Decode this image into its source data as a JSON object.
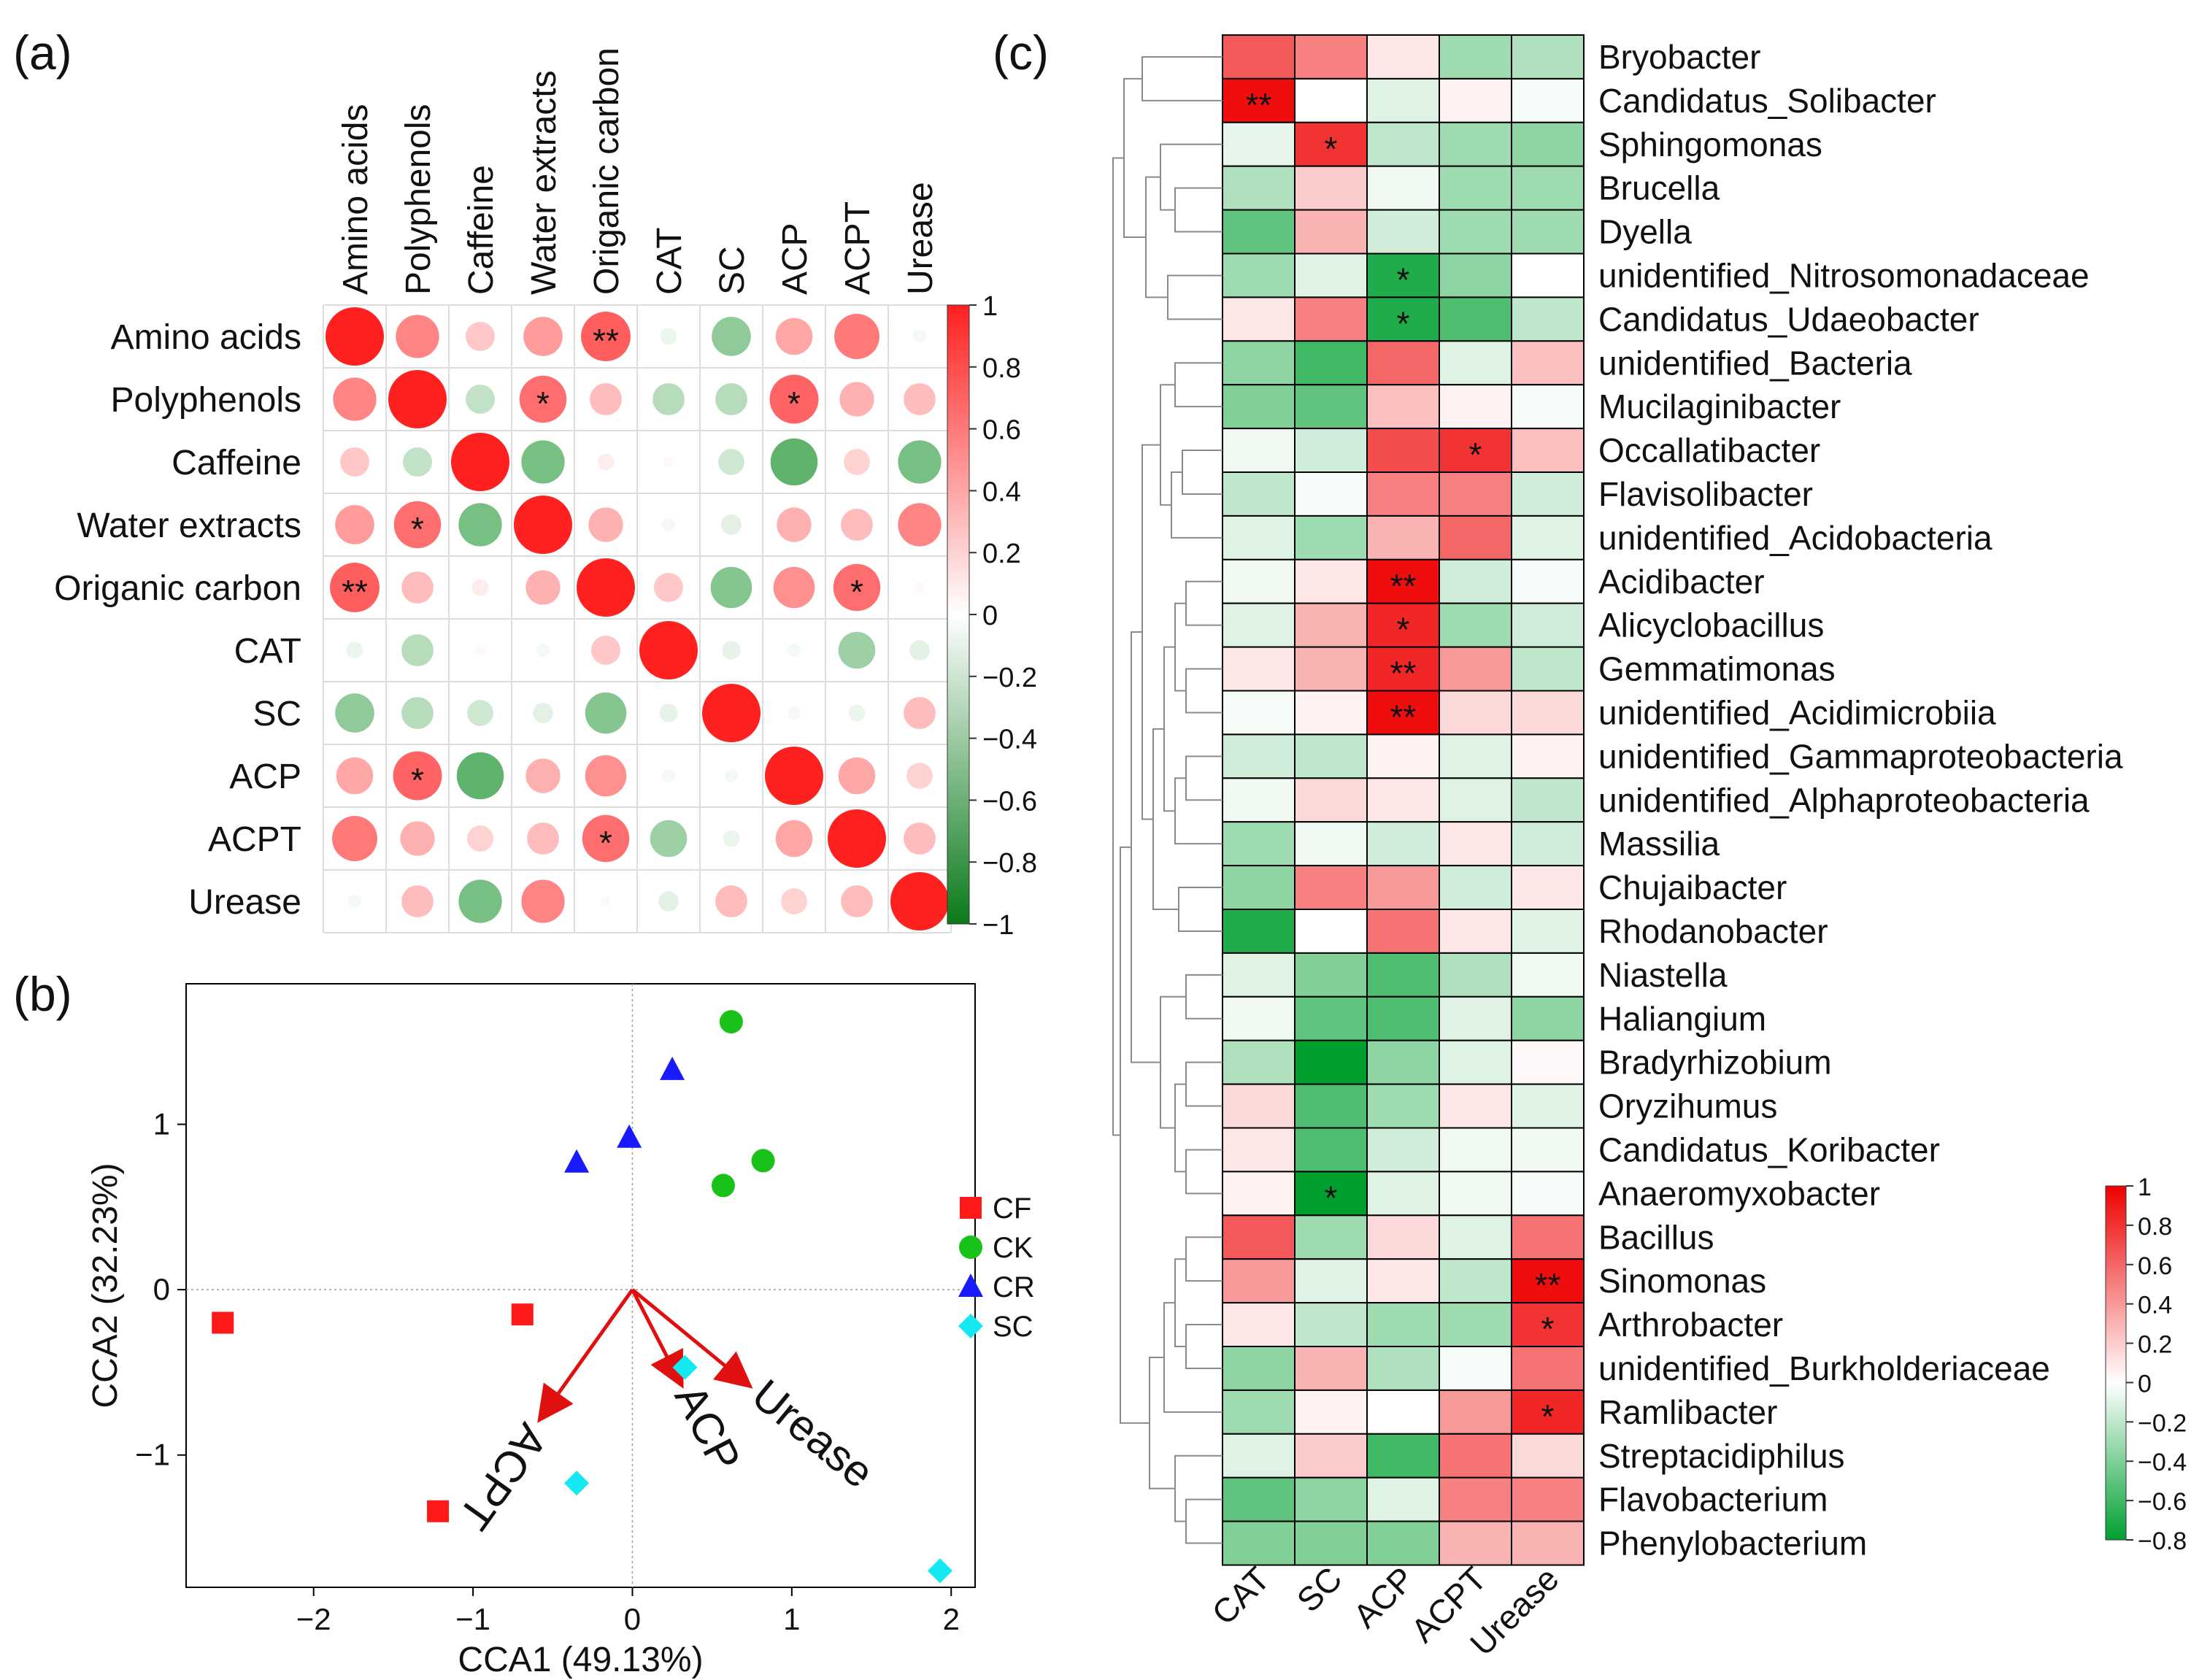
{
  "panel_labels": {
    "a": "(a)",
    "b": "(b)",
    "c": "(c)"
  },
  "chart_data": [
    {
      "id": "a",
      "type": "heatmap",
      "title": "",
      "variables": [
        "Amino acids",
        "Polyphenols",
        "Caffeine",
        "Water extracts",
        "Origanic carbon",
        "CAT",
        "SC",
        "ACP",
        "ACPT",
        "Urease"
      ],
      "values": [
        [
          1.0,
          0.55,
          0.25,
          0.45,
          0.72,
          -0.08,
          -0.45,
          0.4,
          0.6,
          -0.05
        ],
        [
          0.55,
          1.0,
          -0.25,
          0.65,
          0.3,
          -0.3,
          -0.3,
          0.7,
          0.35,
          0.3
        ],
        [
          0.25,
          -0.25,
          1.0,
          -0.55,
          0.08,
          0.03,
          -0.2,
          -0.65,
          0.2,
          -0.55
        ],
        [
          0.45,
          0.65,
          -0.55,
          1.0,
          0.35,
          -0.05,
          -0.12,
          0.35,
          0.3,
          0.55
        ],
        [
          0.72,
          0.3,
          0.08,
          0.35,
          1.0,
          0.25,
          -0.5,
          0.5,
          0.65,
          0.03
        ],
        [
          -0.08,
          -0.3,
          0.03,
          -0.05,
          0.25,
          1.0,
          -0.1,
          -0.05,
          -0.4,
          -0.12
        ],
        [
          -0.45,
          -0.3,
          -0.2,
          -0.12,
          -0.5,
          -0.1,
          1.0,
          -0.05,
          -0.08,
          0.3
        ],
        [
          0.4,
          0.7,
          -0.65,
          0.35,
          0.5,
          -0.05,
          -0.05,
          1.0,
          0.4,
          0.2
        ],
        [
          0.6,
          0.35,
          0.2,
          0.3,
          0.65,
          -0.4,
          -0.08,
          0.4,
          1.0,
          0.3
        ],
        [
          -0.05,
          0.3,
          -0.55,
          0.55,
          0.03,
          -0.12,
          0.3,
          0.2,
          0.3,
          1.0
        ]
      ],
      "significance": [
        [
          "",
          "",
          "",
          "",
          "**",
          "",
          "",
          "",
          "",
          ""
        ],
        [
          "",
          "",
          "",
          "*",
          "",
          "",
          "",
          "*",
          "",
          ""
        ],
        [
          "",
          "",
          "",
          "",
          "",
          "",
          "",
          "",
          "",
          ""
        ],
        [
          "",
          "*",
          "",
          "",
          "",
          "",
          "",
          "",
          "",
          ""
        ],
        [
          "**",
          "",
          "",
          "",
          "",
          "",
          "",
          "",
          "*",
          ""
        ],
        [
          "",
          "",
          "",
          "",
          "",
          "",
          "",
          "",
          "",
          ""
        ],
        [
          "",
          "",
          "",
          "",
          "",
          "",
          "",
          "",
          "",
          ""
        ],
        [
          "",
          "*",
          "",
          "",
          "",
          "",
          "",
          "",
          "",
          ""
        ],
        [
          "",
          "",
          "",
          "",
          "*",
          "",
          "",
          "",
          "",
          ""
        ],
        [
          "",
          "",
          "",
          "",
          "",
          "",
          "",
          "",
          "",
          ""
        ]
      ],
      "colorbar": {
        "min": -1,
        "max": 1,
        "ticks": [
          1,
          0.8,
          0.6,
          0.4,
          0.2,
          0,
          -0.2,
          -0.4,
          -0.6,
          -0.8,
          -1
        ],
        "tick_labels": [
          "1",
          "0.8",
          "0.6",
          "0.4",
          "0.2",
          "0",
          "−0.2",
          "−0.4",
          "−0.6",
          "−0.8",
          "−1"
        ]
      },
      "colors": {
        "positive": "#ff2020",
        "negative": "#0a8a1e",
        "neutral": "#ffffff"
      }
    },
    {
      "id": "b",
      "type": "scatter",
      "xlabel": "CCA1  (49.13%)",
      "ylabel": "CCA2  (32.23%)",
      "xlim": [
        -2.8,
        2.15
      ],
      "ylim": [
        -1.8,
        1.85
      ],
      "xticks": [
        -2,
        -1,
        0,
        1,
        2
      ],
      "xtick_labels": [
        "−2",
        "−1",
        "0",
        "1",
        "2"
      ],
      "yticks": [
        -1,
        0,
        1
      ],
      "ytick_labels": [
        "−1",
        "0",
        "1"
      ],
      "series": [
        {
          "name": "CF",
          "marker": "square",
          "color": "#ff1a1a",
          "points": [
            [
              -2.57,
              -0.2
            ],
            [
              -0.69,
              -0.15
            ],
            [
              -1.22,
              -1.34
            ]
          ]
        },
        {
          "name": "CK",
          "marker": "circle",
          "color": "#19c219",
          "points": [
            [
              0.62,
              1.62
            ],
            [
              0.82,
              0.78
            ],
            [
              0.57,
              0.63
            ]
          ]
        },
        {
          "name": "CR",
          "marker": "triangle",
          "color": "#1a1aff",
          "points": [
            [
              0.25,
              1.33
            ],
            [
              -0.02,
              0.92
            ],
            [
              -0.35,
              0.77
            ]
          ]
        },
        {
          "name": "SC",
          "marker": "diamond",
          "color": "#14e8f0",
          "points": [
            [
              0.33,
              -0.47
            ],
            [
              -0.35,
              -1.17
            ],
            [
              1.93,
              -1.7
            ]
          ]
        }
      ],
      "arrows": [
        {
          "label": "ACPT",
          "x": -0.57,
          "y": -0.77
        },
        {
          "label": "ACP",
          "x": 0.3,
          "y": -0.56
        },
        {
          "label": "Urease",
          "x": 0.72,
          "y": -0.57
        }
      ],
      "arrow_color": "#e01010",
      "legend_position": "right"
    },
    {
      "id": "c",
      "type": "heatmap",
      "columns": [
        "CAT",
        "SC",
        "ACP",
        "ACPT",
        "Urease"
      ],
      "rows": [
        "Bryobacter",
        "Candidatus_Solibacter",
        "Sphingomonas",
        "Brucella",
        "Dyella",
        "unidentified_Nitrosomonadaceae",
        "Candidatus_Udaeobacter",
        "unidentified_Bacteria",
        "Mucilaginibacter",
        "Occallatibacter",
        "Flavisolibacter",
        "unidentified_Acidobacteria",
        "Acidibacter",
        "Alicyclobacillus",
        "Gemmatimonas",
        "unidentified_Acidimicrobiia",
        "unidentified_Gammaproteobacteria",
        "unidentified_Alphaproteobacteria",
        "Massilia",
        "Chujaibacter",
        "Rhodanobacter",
        "Niastella",
        "Haliangium",
        "Bradyrhizobium",
        "Oryzihumus",
        "Candidatus_Koribacter",
        "Anaeromyxobacter",
        "Bacillus",
        "Sinomonas",
        "Arthrobacter",
        "unidentified_Burkholderiaceae",
        "Ramlibacter",
        "Streptacidiphilus",
        "Flavobacterium",
        "Phenylobacterium"
      ],
      "values": [
        [
          0.65,
          0.5,
          0.1,
          -0.3,
          -0.25
        ],
        [
          0.95,
          0.0,
          -0.1,
          0.05,
          -0.03
        ],
        [
          -0.08,
          0.8,
          -0.2,
          -0.3,
          -0.35
        ],
        [
          -0.25,
          0.2,
          -0.05,
          -0.3,
          -0.3
        ],
        [
          -0.5,
          0.3,
          -0.15,
          -0.3,
          -0.3
        ],
        [
          -0.3,
          -0.1,
          -0.7,
          -0.35,
          0.0
        ],
        [
          0.1,
          0.5,
          -0.7,
          -0.55,
          -0.2
        ],
        [
          -0.35,
          -0.6,
          0.6,
          -0.1,
          0.25
        ],
        [
          -0.4,
          -0.5,
          0.25,
          0.05,
          -0.03
        ],
        [
          -0.05,
          -0.15,
          0.7,
          0.8,
          0.25
        ],
        [
          -0.2,
          -0.03,
          0.5,
          0.5,
          -0.15
        ],
        [
          -0.1,
          -0.3,
          0.3,
          0.6,
          -0.1
        ],
        [
          -0.05,
          0.1,
          0.95,
          -0.15,
          -0.03
        ],
        [
          -0.1,
          0.3,
          0.85,
          -0.3,
          -0.15
        ],
        [
          0.1,
          0.3,
          0.85,
          0.4,
          -0.2
        ],
        [
          -0.03,
          0.05,
          0.95,
          0.15,
          0.15
        ],
        [
          -0.15,
          -0.2,
          0.05,
          -0.1,
          0.05
        ],
        [
          -0.05,
          0.15,
          0.1,
          -0.1,
          -0.2
        ],
        [
          -0.3,
          -0.05,
          -0.15,
          0.1,
          -0.15
        ],
        [
          -0.35,
          0.5,
          0.4,
          -0.15,
          0.1
        ],
        [
          -0.7,
          0.0,
          0.55,
          0.1,
          -0.1
        ],
        [
          -0.1,
          -0.4,
          -0.55,
          -0.25,
          -0.05
        ],
        [
          -0.05,
          -0.5,
          -0.55,
          -0.1,
          -0.35
        ],
        [
          -0.25,
          -0.8,
          -0.35,
          -0.1,
          0.03
        ],
        [
          0.15,
          -0.55,
          -0.3,
          0.1,
          -0.1
        ],
        [
          0.1,
          -0.55,
          -0.15,
          -0.05,
          -0.05
        ],
        [
          0.05,
          -0.85,
          -0.1,
          -0.05,
          -0.03
        ],
        [
          0.65,
          -0.3,
          0.15,
          -0.1,
          0.55
        ],
        [
          0.4,
          -0.1,
          0.1,
          -0.2,
          0.95
        ],
        [
          0.1,
          -0.2,
          -0.3,
          -0.3,
          0.8
        ],
        [
          -0.35,
          0.3,
          -0.25,
          -0.03,
          0.55
        ],
        [
          -0.3,
          0.05,
          0.0,
          0.4,
          0.85
        ],
        [
          -0.1,
          0.2,
          -0.6,
          0.55,
          0.15
        ],
        [
          -0.5,
          -0.35,
          -0.1,
          0.5,
          0.5
        ],
        [
          -0.4,
          -0.4,
          -0.4,
          0.3,
          0.3
        ]
      ],
      "significance": [
        [
          "",
          "",
          "",
          "",
          ""
        ],
        [
          "**",
          "",
          "",
          "",
          ""
        ],
        [
          "",
          "*",
          "",
          "",
          ""
        ],
        [
          "",
          "",
          "",
          "",
          ""
        ],
        [
          "",
          "",
          "",
          "",
          ""
        ],
        [
          "",
          "",
          "*",
          "",
          ""
        ],
        [
          "",
          "",
          "*",
          "",
          ""
        ],
        [
          "",
          "",
          "",
          "",
          ""
        ],
        [
          "",
          "",
          "",
          "",
          ""
        ],
        [
          "",
          "",
          "",
          "*",
          ""
        ],
        [
          "",
          "",
          "",
          "",
          ""
        ],
        [
          "",
          "",
          "",
          "",
          ""
        ],
        [
          "",
          "",
          "**",
          "",
          ""
        ],
        [
          "",
          "",
          "*",
          "",
          ""
        ],
        [
          "",
          "",
          "**",
          "",
          ""
        ],
        [
          "",
          "",
          "**",
          "",
          ""
        ],
        [
          "",
          "",
          "",
          "",
          ""
        ],
        [
          "",
          "",
          "",
          "",
          ""
        ],
        [
          "",
          "",
          "",
          "",
          ""
        ],
        [
          "",
          "",
          "",
          "",
          ""
        ],
        [
          "",
          "",
          "",
          "",
          ""
        ],
        [
          "",
          "",
          "",
          "",
          ""
        ],
        [
          "",
          "",
          "",
          "",
          ""
        ],
        [
          "",
          "",
          "",
          "",
          ""
        ],
        [
          "",
          "",
          "",
          "",
          ""
        ],
        [
          "",
          "",
          "",
          "",
          ""
        ],
        [
          "",
          "*",
          "",
          "",
          ""
        ],
        [
          "",
          "",
          "",
          "",
          ""
        ],
        [
          "",
          "",
          "",
          "",
          "**"
        ],
        [
          "",
          "",
          "",
          "",
          "*"
        ],
        [
          "",
          "",
          "",
          "",
          ""
        ],
        [
          "",
          "",
          "",
          "",
          "*"
        ],
        [
          "",
          "",
          "",
          "",
          ""
        ],
        [
          "",
          "",
          "",
          "",
          ""
        ],
        [
          "",
          "",
          "",
          "",
          ""
        ]
      ],
      "dendrogram": {
        "type": "row-clustering",
        "position": "left"
      },
      "colorbar": {
        "min": -0.8,
        "max": 1,
        "ticks": [
          1,
          0.8,
          0.6,
          0.4,
          0.2,
          0,
          -0.2,
          -0.4,
          -0.6,
          -0.8
        ],
        "tick_labels": [
          "1",
          "0.8",
          "0.6",
          "0.4",
          "0.2",
          "0",
          "−0.2",
          "−0.4",
          "−0.6",
          "−0.8"
        ]
      },
      "colors": {
        "positive": "#ee0000",
        "negative": "#00a030",
        "neutral": "#ffffff"
      }
    }
  ]
}
